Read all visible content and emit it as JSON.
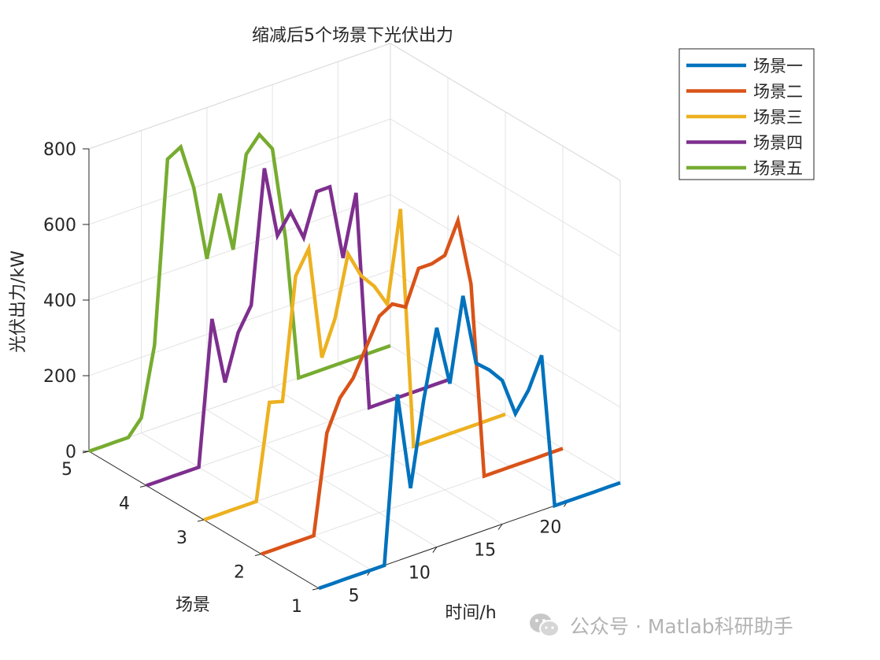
{
  "chart_data": {
    "type": "line",
    "view": "3d",
    "title": "缩减后5个场景下光伏出力",
    "xlabel": "时间/h",
    "ylabel": "场景",
    "zlabel": "光伏出力/kW",
    "xlim": [
      1,
      24
    ],
    "ylim": [
      1,
      5
    ],
    "zlim": [
      0,
      800
    ],
    "x_ticks": [
      "5",
      "10",
      "15",
      "20"
    ],
    "y_ticks": [
      "1",
      "2",
      "3",
      "4",
      "5"
    ],
    "z_ticks": [
      "0",
      "200",
      "400",
      "600",
      "800"
    ],
    "grid": true,
    "legend_position": "top-right",
    "x": [
      1,
      2,
      3,
      4,
      5,
      6,
      7,
      8,
      9,
      10,
      11,
      12,
      13,
      14,
      15,
      16,
      17,
      18,
      19,
      20,
      21,
      22,
      23,
      24
    ],
    "series": [
      {
        "name": "场景一",
        "color": "#0072BD",
        "y": 1,
        "values": [
          0,
          0,
          0,
          0,
          0,
          0,
          440,
          180,
          400,
          580,
          420,
          640,
          450,
          420,
          380,
          280,
          330,
          410,
          0,
          0,
          0,
          0,
          0,
          0
        ]
      },
      {
        "name": "场景二",
        "color": "#D95319",
        "y": 2,
        "values": [
          0,
          0,
          0,
          0,
          0,
          260,
          340,
          380,
          450,
          520,
          540,
          520,
          610,
          610,
          620,
          700,
          520,
          0,
          0,
          0,
          0,
          0,
          0,
          0
        ]
      },
      {
        "name": "场景三",
        "color": "#EDB120",
        "y": 3,
        "values": [
          0,
          0,
          0,
          0,
          0,
          250,
          240,
          560,
          620,
          320,
          410,
          570,
          500,
          460,
          400,
          640,
          0,
          0,
          0,
          0,
          0,
          0,
          0,
          0
        ]
      },
      {
        "name": "场景四",
        "color": "#7E2F8E",
        "y": 4,
        "values": [
          0,
          0,
          0,
          0,
          0,
          380,
          200,
          320,
          380,
          730,
          540,
          590,
          510,
          620,
          620,
          420,
          580,
          0,
          0,
          0,
          0,
          0,
          0,
          0
        ]
      },
      {
        "name": "场景五",
        "color": "#77AC30",
        "y": 5,
        "values": [
          0,
          0,
          0,
          0,
          40,
          220,
          700,
          720,
          600,
          400,
          560,
          400,
          640,
          680,
          630,
          380,
          0,
          0,
          0,
          0,
          0,
          0,
          0,
          0
        ]
      }
    ]
  },
  "watermark": {
    "text": "公众号 · Matlab科研助手"
  }
}
